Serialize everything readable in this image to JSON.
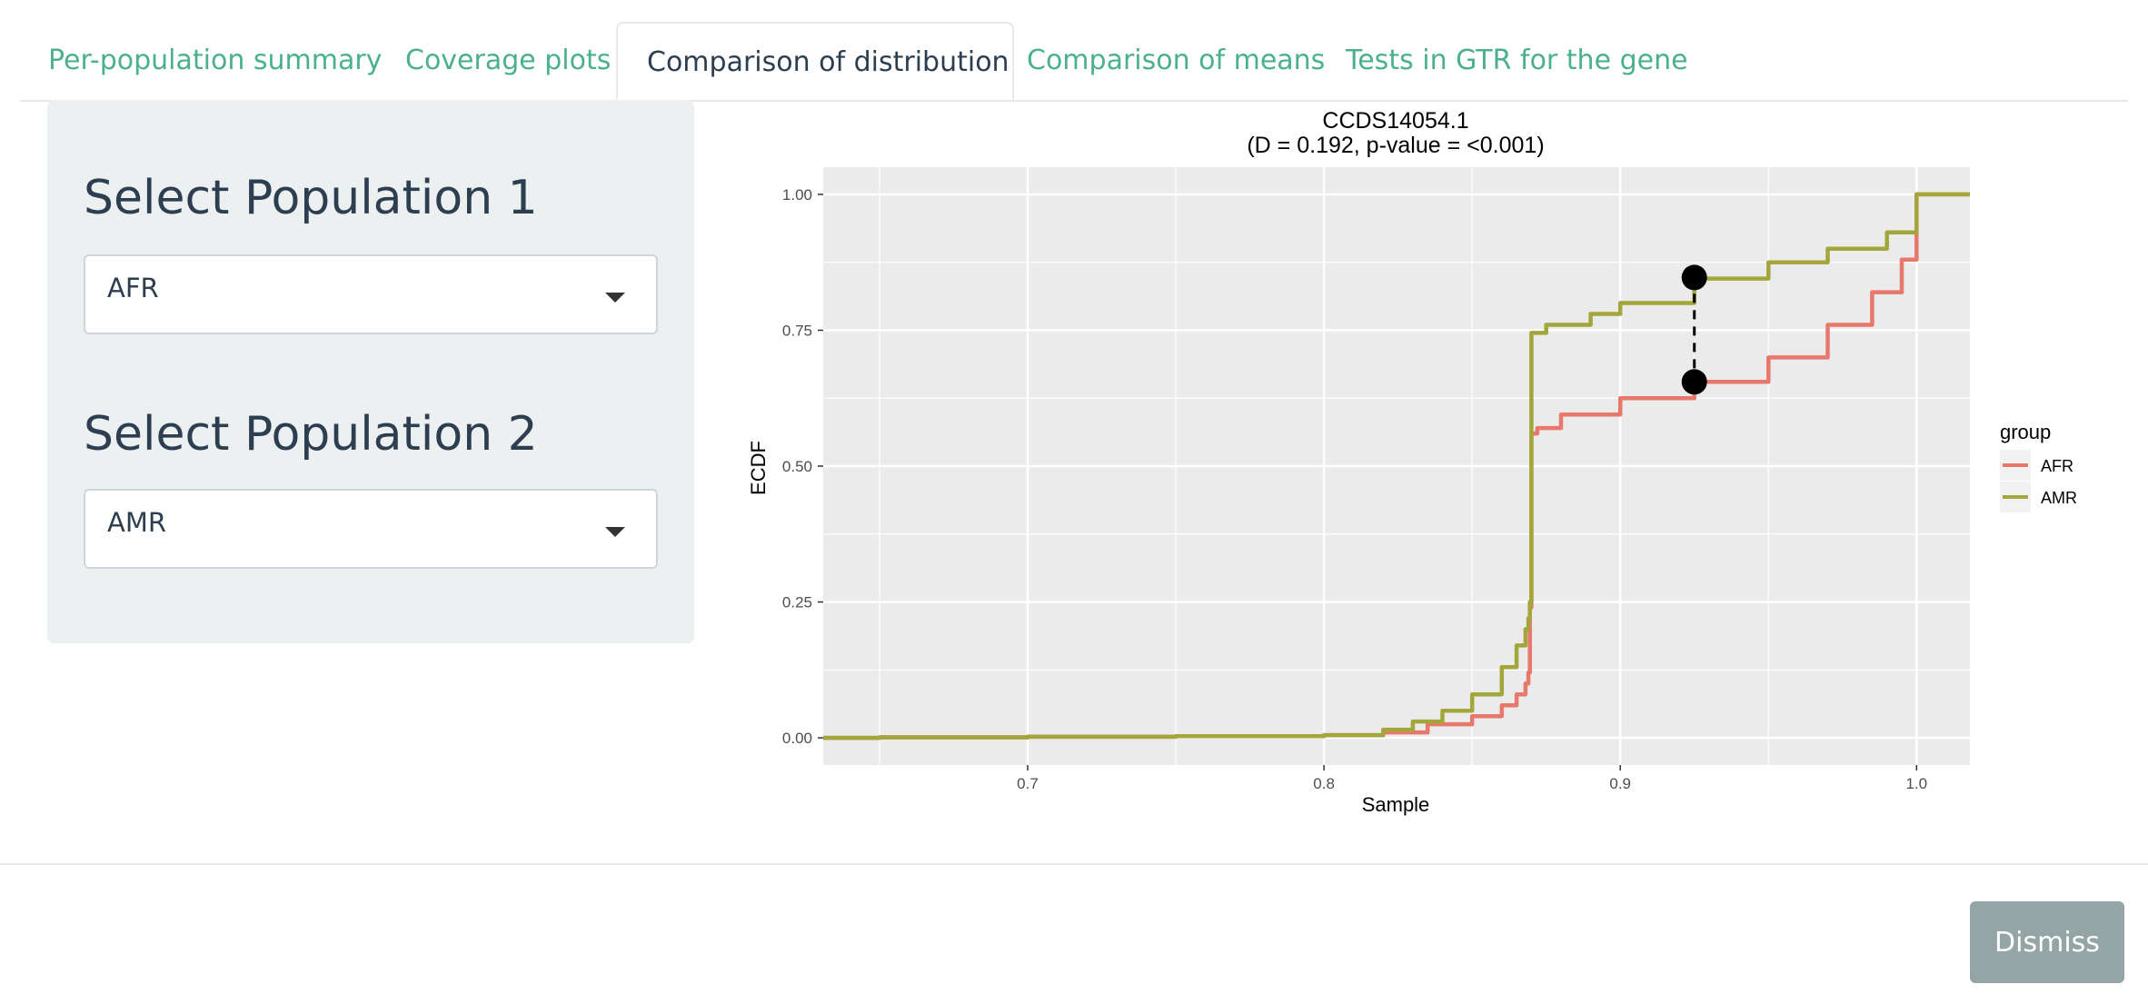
{
  "tabs": [
    {
      "label": "Per-population summary"
    },
    {
      "label": "Coverage plots"
    },
    {
      "label": "Comparison of distribution"
    },
    {
      "label": "Comparison of means"
    },
    {
      "label": "Tests in GTR for the gene"
    }
  ],
  "active_tab": 2,
  "sidebar": {
    "population1": {
      "label": "Select Population 1",
      "value": "AFR"
    },
    "population2": {
      "label": "Select Population 2",
      "value": "AMR"
    }
  },
  "footer": {
    "dismiss_label": "Dismiss"
  },
  "colors": {
    "accent": "#4bb08c",
    "afr": "#e8786c",
    "amr": "#a3a63a",
    "panel": "#ecf0f1",
    "button": "#95a5a6"
  },
  "chart_data": {
    "type": "line",
    "title": "CCDS14054.1",
    "subtitle": "(D = 0.192, p-value = <0.001)",
    "xlabel": "Sample",
    "ylabel": "ECDF",
    "xlim": [
      0.631,
      1.018
    ],
    "ylim": [
      -0.05,
      1.05
    ],
    "x_ticks": [
      0.7,
      0.8,
      0.9,
      1.0
    ],
    "x_tick_labels": [
      "0.7",
      "0.8",
      "0.9",
      "1.0"
    ],
    "y_ticks": [
      0.0,
      0.25,
      0.5,
      0.75,
      1.0
    ],
    "y_tick_labels": [
      "0.00",
      "0.25",
      "0.50",
      "0.75",
      "1.00"
    ],
    "legend": {
      "title": "group",
      "position": "right"
    },
    "series": [
      {
        "name": "AFR",
        "color": "#e8786c",
        "x": [
          0.631,
          0.65,
          0.7,
          0.75,
          0.8,
          0.82,
          0.835,
          0.85,
          0.86,
          0.865,
          0.868,
          0.869,
          0.8695,
          0.87,
          0.872,
          0.88,
          0.9,
          0.925,
          0.95,
          0.97,
          0.985,
          0.995,
          1.0,
          1.0,
          1.018
        ],
        "y": [
          0.0,
          0.001,
          0.002,
          0.003,
          0.005,
          0.01,
          0.025,
          0.04,
          0.06,
          0.08,
          0.1,
          0.12,
          0.24,
          0.56,
          0.57,
          0.595,
          0.625,
          0.655,
          0.7,
          0.76,
          0.82,
          0.88,
          0.92,
          1.0,
          1.0
        ]
      },
      {
        "name": "AMR",
        "color": "#a3a63a",
        "x": [
          0.631,
          0.65,
          0.7,
          0.75,
          0.8,
          0.82,
          0.83,
          0.84,
          0.85,
          0.86,
          0.865,
          0.868,
          0.869,
          0.8695,
          0.87,
          0.875,
          0.89,
          0.9,
          0.925,
          0.95,
          0.97,
          0.99,
          1.0,
          1.0,
          1.018
        ],
        "y": [
          0.0,
          0.001,
          0.002,
          0.003,
          0.005,
          0.015,
          0.03,
          0.05,
          0.08,
          0.13,
          0.17,
          0.2,
          0.22,
          0.25,
          0.745,
          0.76,
          0.78,
          0.8,
          0.845,
          0.875,
          0.9,
          0.93,
          0.96,
          1.0,
          1.0
        ]
      }
    ],
    "ks_statistic": {
      "x": 0.925,
      "y_low": 0.655,
      "y_high": 0.847
    }
  }
}
